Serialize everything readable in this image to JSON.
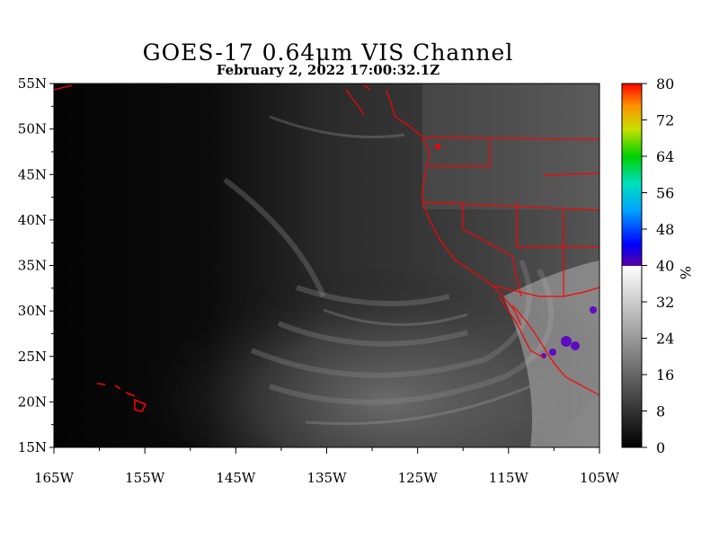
{
  "title": "GOES-17  0.64μm VIS Channel",
  "subtitle": "February  2,  2022 17:00:32.1Z",
  "map": {
    "lon_range": [
      -165,
      -105
    ],
    "lat_range": [
      15,
      55
    ],
    "lat_ticks": [
      "55N",
      "50N",
      "45N",
      "40N",
      "35N",
      "30N",
      "25N",
      "20N",
      "15N"
    ],
    "lon_ticks": [
      "165W",
      "155W",
      "145W",
      "135W",
      "125W",
      "115W",
      "105W"
    ],
    "border_color": "#ff0000"
  },
  "colorbar": {
    "unit": "%",
    "range": [
      0,
      80
    ],
    "labels": [
      "80",
      "72",
      "64",
      "56",
      "48",
      "40",
      "32",
      "24",
      "16",
      "8",
      "0"
    ]
  }
}
